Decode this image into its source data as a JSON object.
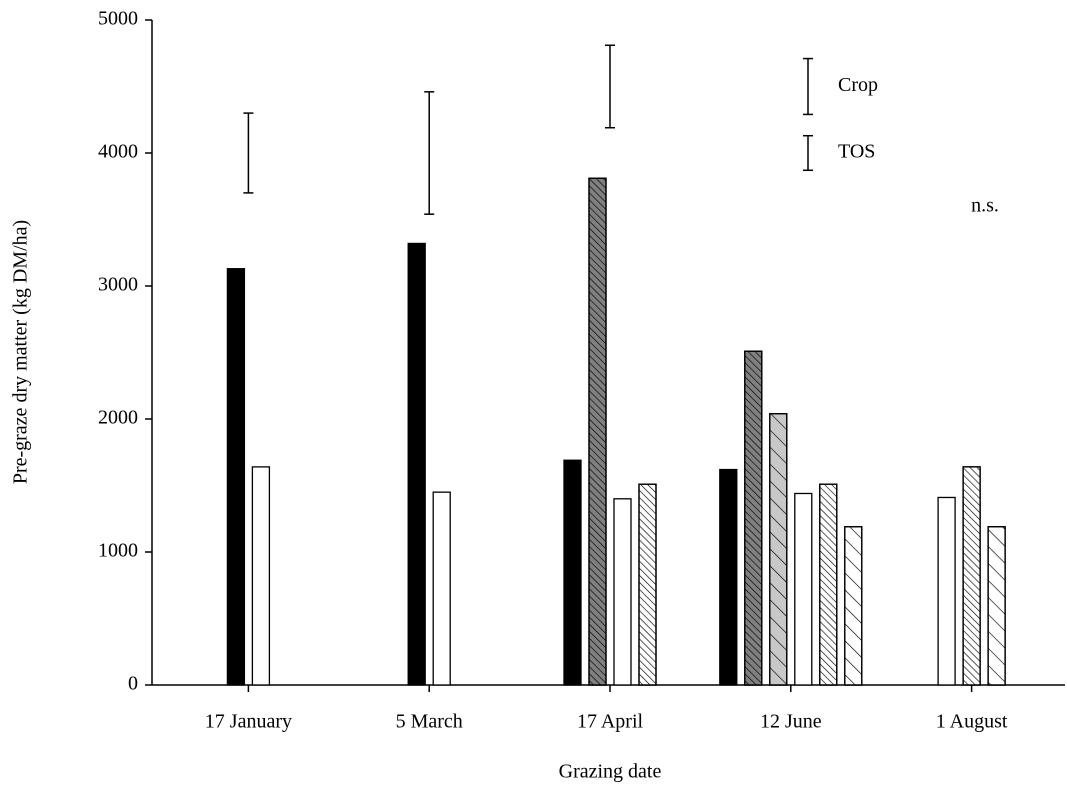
{
  "chart_data": {
    "type": "bar",
    "x_label": "Grazing date",
    "y_label": "Pre-graze dry matter (kg DM/ha)",
    "categories": [
      "17 January",
      "5 March",
      "17 April",
      "12 June",
      "1 August"
    ],
    "series": [
      {
        "color": "#000000",
        "values": [
          3130,
          3320,
          1690,
          1620,
          null
        ]
      },
      {
        "color": "#808080",
        "hatch": "dense",
        "values": [
          null,
          null,
          3810,
          2510,
          null
        ]
      },
      {
        "color": "#c8c8c8",
        "hatch": "wide",
        "values": [
          null,
          null,
          null,
          2040,
          null
        ]
      },
      {
        "color": "#ffffff",
        "values": [
          1640,
          1450,
          1400,
          1440,
          1410
        ]
      },
      {
        "color": "#ffffff",
        "hatch": "dense",
        "values": [
          null,
          null,
          1510,
          1510,
          1640
        ]
      },
      {
        "color": "#ffffff",
        "hatch": "wide",
        "values": [
          null,
          null,
          null,
          1190,
          1190
        ]
      }
    ],
    "error_bars": [
      {
        "low": 3700,
        "high": 4300
      },
      {
        "low": 3540,
        "high": 4460
      },
      {
        "low": 4190,
        "high": 4810
      },
      null,
      null
    ],
    "error_bar_legend": [
      {
        "label": "Crop",
        "low": 4290,
        "high": 4710
      },
      {
        "label": "TOS",
        "low": 3870,
        "high": 4130
      }
    ],
    "annotations": [
      "n.s."
    ],
    "ylim": [
      0,
      5000
    ],
    "yticks": [
      0,
      1000,
      2000,
      3000,
      4000,
      5000
    ],
    "grid": false
  }
}
